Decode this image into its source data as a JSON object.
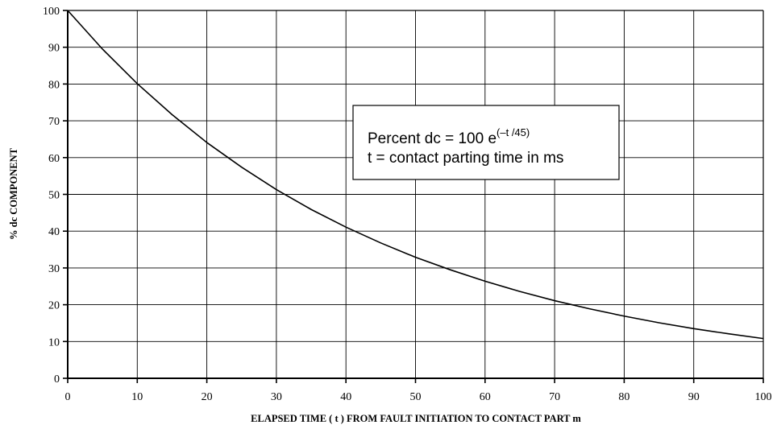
{
  "chart_data": {
    "type": "line",
    "xlabel": "ELAPSED TIME ( t ) FROM FAULT INITIATION TO CONTACT PART  m",
    "ylabel": "% dc COMPONENT",
    "xlim": [
      0,
      100
    ],
    "ylim": [
      0,
      100
    ],
    "x_ticks": [
      0,
      10,
      20,
      30,
      40,
      50,
      60,
      70,
      80,
      90,
      100
    ],
    "y_ticks": [
      0,
      10,
      20,
      30,
      40,
      50,
      60,
      70,
      80,
      90,
      100
    ],
    "x_tick_labels": [
      "0",
      "10",
      "20",
      "30",
      "40",
      "50",
      "60",
      "70",
      "80",
      "90",
      "100"
    ],
    "y_tick_labels": [
      "0",
      "10",
      "20",
      "30",
      "40",
      "50",
      "60",
      "70",
      "80",
      "90",
      "100"
    ],
    "grid": true,
    "series": [
      {
        "x": [
          0,
          5,
          10,
          15,
          20,
          25,
          30,
          35,
          40,
          45,
          50,
          55,
          60,
          65,
          70,
          75,
          80,
          85,
          90,
          95,
          100
        ],
        "y": [
          100,
          89.5,
          80.1,
          71.7,
          64.1,
          57.4,
          51.3,
          45.9,
          41.1,
          36.8,
          32.9,
          29.5,
          26.4,
          23.6,
          21.1,
          18.9,
          16.9,
          15.1,
          13.5,
          12.1,
          10.8
        ]
      }
    ],
    "annotation": {
      "line1_prefix": "Percent dc = 100 e",
      "line1_superscript": "(–t /45)",
      "line2": "t = contact parting time in ms"
    }
  }
}
